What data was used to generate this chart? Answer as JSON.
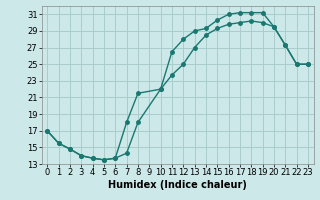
{
  "title": "",
  "xlabel": "Humidex (Indice chaleur)",
  "bg_color": "#cce8e8",
  "grid_color": "#aacccc",
  "line_color": "#1a7870",
  "xlim": [
    -0.5,
    23.5
  ],
  "ylim": [
    13,
    32
  ],
  "xticks": [
    0,
    1,
    2,
    3,
    4,
    5,
    6,
    7,
    8,
    9,
    10,
    11,
    12,
    13,
    14,
    15,
    16,
    17,
    18,
    19,
    20,
    21,
    22,
    23
  ],
  "yticks": [
    13,
    15,
    17,
    19,
    21,
    23,
    25,
    27,
    29,
    31
  ],
  "line1_x": [
    0,
    1,
    2,
    3,
    4,
    5,
    6,
    7,
    8,
    10,
    11,
    12,
    13,
    14,
    15,
    16,
    17,
    18,
    19,
    20,
    21,
    22,
    23
  ],
  "line1_y": [
    17,
    15.5,
    14.8,
    14.0,
    13.7,
    13.5,
    13.7,
    18.0,
    21.5,
    22.0,
    26.5,
    28.0,
    29.0,
    29.3,
    30.3,
    31.0,
    31.2,
    31.2,
    31.2,
    29.5,
    27.3,
    25.0,
    25.0
  ],
  "line2_x": [
    0,
    1,
    2,
    3,
    4,
    5,
    6,
    7,
    8,
    10,
    11,
    12,
    13,
    14,
    15,
    16,
    17,
    18,
    19,
    20,
    21,
    22,
    23
  ],
  "line2_y": [
    17,
    15.5,
    14.8,
    14.0,
    13.7,
    13.5,
    13.7,
    14.3,
    18.0,
    22.0,
    23.7,
    25.0,
    27.0,
    28.5,
    29.3,
    29.8,
    30.0,
    30.2,
    30.0,
    29.5,
    27.3,
    25.0,
    25.0
  ],
  "marker_size": 2.5,
  "linewidth": 1.0,
  "xlabel_fontsize": 7,
  "tick_fontsize": 6
}
